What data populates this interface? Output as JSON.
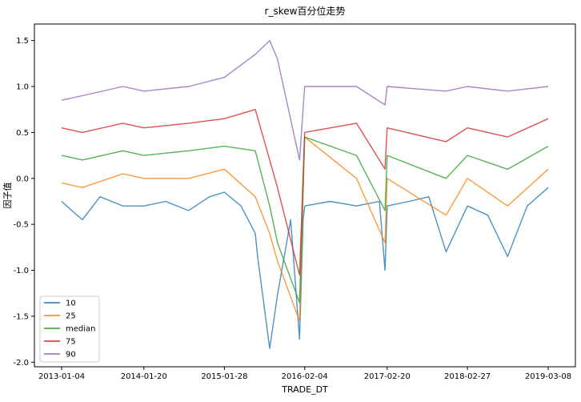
{
  "chart_data": {
    "type": "line",
    "title": "r_skew百分位走势",
    "xlabel": "TRADE_DT",
    "ylabel": "因子值",
    "x_ticks": [
      "2013-01-04",
      "2014-01-20",
      "2015-01-28",
      "2016-02-04",
      "2017-02-20",
      "2018-02-27",
      "2019-03-08"
    ],
    "x_range": [
      "2013-01-04",
      "2019-03-08"
    ],
    "y_ticks": [
      "-2.0",
      "-1.5",
      "-1.0",
      "-0.5",
      "0.0",
      "0.5",
      "1.0",
      "1.5"
    ],
    "ylim": [
      -2.05,
      1.68
    ],
    "grid": false,
    "legend_position": "lower-left",
    "series": [
      {
        "name": "10",
        "color": "#1f77b4",
        "values": [
          {
            "x": "2013-01-04",
            "y": -0.25
          },
          {
            "x": "2013-02-20",
            "y": -0.35
          },
          {
            "x": "2013-04-10",
            "y": -0.45
          },
          {
            "x": "2013-07-01",
            "y": -0.2
          },
          {
            "x": "2013-10-15",
            "y": -0.3
          },
          {
            "x": "2014-01-20",
            "y": -0.3
          },
          {
            "x": "2014-05-01",
            "y": -0.25
          },
          {
            "x": "2014-08-15",
            "y": -0.35
          },
          {
            "x": "2014-11-20",
            "y": -0.2
          },
          {
            "x": "2015-01-28",
            "y": -0.15
          },
          {
            "x": "2015-04-15",
            "y": -0.3
          },
          {
            "x": "2015-06-20",
            "y": -0.6
          },
          {
            "x": "2015-07-01",
            "y": -0.85
          },
          {
            "x": "2015-08-26",
            "y": -1.85
          },
          {
            "x": "2015-10-01",
            "y": -1.27
          },
          {
            "x": "2015-12-01",
            "y": -0.45
          },
          {
            "x": "2016-01-11",
            "y": -1.75
          },
          {
            "x": "2016-01-28",
            "y": -0.45
          },
          {
            "x": "2016-02-04",
            "y": -0.3
          },
          {
            "x": "2016-06-01",
            "y": -0.25
          },
          {
            "x": "2016-10-01",
            "y": -0.3
          },
          {
            "x": "2017-01-15",
            "y": -0.25
          },
          {
            "x": "2017-02-10",
            "y": -1.0
          },
          {
            "x": "2017-02-20",
            "y": -0.3
          },
          {
            "x": "2017-06-01",
            "y": -0.25
          },
          {
            "x": "2017-09-01",
            "y": -0.2
          },
          {
            "x": "2017-11-20",
            "y": -0.8
          },
          {
            "x": "2018-02-27",
            "y": -0.3
          },
          {
            "x": "2018-06-01",
            "y": -0.4
          },
          {
            "x": "2018-09-01",
            "y": -0.85
          },
          {
            "x": "2018-12-01",
            "y": -0.3
          },
          {
            "x": "2019-03-08",
            "y": -0.1
          }
        ]
      },
      {
        "name": "25",
        "color": "#ff7f0e",
        "values": [
          {
            "x": "2013-01-04",
            "y": -0.05
          },
          {
            "x": "2013-04-10",
            "y": -0.1
          },
          {
            "x": "2013-10-15",
            "y": 0.05
          },
          {
            "x": "2014-01-20",
            "y": 0.0
          },
          {
            "x": "2014-08-15",
            "y": 0.0
          },
          {
            "x": "2015-01-28",
            "y": 0.1
          },
          {
            "x": "2015-06-20",
            "y": -0.2
          },
          {
            "x": "2015-08-26",
            "y": -0.6
          },
          {
            "x": "2015-10-01",
            "y": -0.9
          },
          {
            "x": "2016-01-11",
            "y": -1.55
          },
          {
            "x": "2016-02-04",
            "y": 0.45
          },
          {
            "x": "2016-10-01",
            "y": 0.0
          },
          {
            "x": "2017-02-10",
            "y": -0.7
          },
          {
            "x": "2017-02-20",
            "y": 0.0
          },
          {
            "x": "2017-11-20",
            "y": -0.4
          },
          {
            "x": "2018-02-27",
            "y": 0.0
          },
          {
            "x": "2018-09-01",
            "y": -0.3
          },
          {
            "x": "2019-03-08",
            "y": 0.1
          }
        ]
      },
      {
        "name": "median",
        "color": "#2ca02c",
        "values": [
          {
            "x": "2013-01-04",
            "y": 0.25
          },
          {
            "x": "2013-04-10",
            "y": 0.2
          },
          {
            "x": "2013-10-15",
            "y": 0.3
          },
          {
            "x": "2014-01-20",
            "y": 0.25
          },
          {
            "x": "2014-08-15",
            "y": 0.3
          },
          {
            "x": "2015-01-28",
            "y": 0.35
          },
          {
            "x": "2015-06-20",
            "y": 0.3
          },
          {
            "x": "2015-08-26",
            "y": -0.3
          },
          {
            "x": "2015-10-01",
            "y": -0.7
          },
          {
            "x": "2016-01-11",
            "y": -1.35
          },
          {
            "x": "2016-02-04",
            "y": 0.45
          },
          {
            "x": "2016-10-01",
            "y": 0.25
          },
          {
            "x": "2017-02-10",
            "y": -0.35
          },
          {
            "x": "2017-02-20",
            "y": 0.25
          },
          {
            "x": "2017-11-20",
            "y": 0.0
          },
          {
            "x": "2018-02-27",
            "y": 0.25
          },
          {
            "x": "2018-09-01",
            "y": 0.1
          },
          {
            "x": "2019-03-08",
            "y": 0.35
          }
        ]
      },
      {
        "name": "75",
        "color": "#d62728",
        "values": [
          {
            "x": "2013-01-04",
            "y": 0.55
          },
          {
            "x": "2013-04-10",
            "y": 0.5
          },
          {
            "x": "2013-10-15",
            "y": 0.6
          },
          {
            "x": "2014-01-20",
            "y": 0.55
          },
          {
            "x": "2014-08-15",
            "y": 0.6
          },
          {
            "x": "2015-01-28",
            "y": 0.65
          },
          {
            "x": "2015-06-20",
            "y": 0.75
          },
          {
            "x": "2015-08-26",
            "y": 0.2
          },
          {
            "x": "2015-10-01",
            "y": -0.1
          },
          {
            "x": "2016-01-11",
            "y": -1.05
          },
          {
            "x": "2016-02-04",
            "y": 0.5
          },
          {
            "x": "2016-10-01",
            "y": 0.6
          },
          {
            "x": "2017-02-10",
            "y": 0.1
          },
          {
            "x": "2017-02-20",
            "y": 0.55
          },
          {
            "x": "2017-11-20",
            "y": 0.4
          },
          {
            "x": "2018-02-27",
            "y": 0.55
          },
          {
            "x": "2018-09-01",
            "y": 0.45
          },
          {
            "x": "2019-03-08",
            "y": 0.65
          }
        ]
      },
      {
        "name": "90",
        "color": "#9467bd",
        "values": [
          {
            "x": "2013-01-04",
            "y": 0.85
          },
          {
            "x": "2013-04-10",
            "y": 0.9
          },
          {
            "x": "2013-10-15",
            "y": 1.0
          },
          {
            "x": "2014-01-20",
            "y": 0.95
          },
          {
            "x": "2014-08-15",
            "y": 1.0
          },
          {
            "x": "2015-01-28",
            "y": 1.1
          },
          {
            "x": "2015-06-20",
            "y": 1.35
          },
          {
            "x": "2015-08-26",
            "y": 1.5
          },
          {
            "x": "2015-10-01",
            "y": 1.3
          },
          {
            "x": "2016-01-11",
            "y": 0.2
          },
          {
            "x": "2016-02-04",
            "y": 1.0
          },
          {
            "x": "2016-10-01",
            "y": 1.0
          },
          {
            "x": "2017-02-10",
            "y": 0.8
          },
          {
            "x": "2017-02-20",
            "y": 1.0
          },
          {
            "x": "2017-11-20",
            "y": 0.95
          },
          {
            "x": "2018-02-27",
            "y": 1.0
          },
          {
            "x": "2018-09-01",
            "y": 0.95
          },
          {
            "x": "2019-03-08",
            "y": 1.0
          }
        ]
      }
    ]
  }
}
